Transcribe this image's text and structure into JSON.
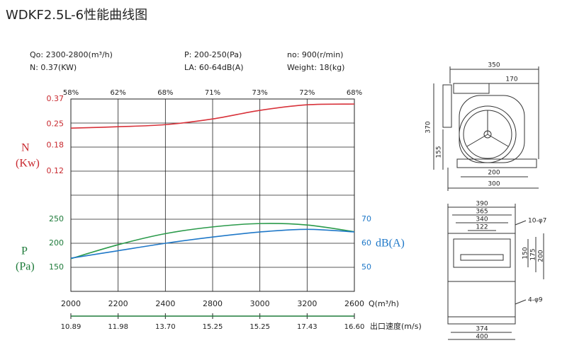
{
  "chart_data": {
    "type": "line",
    "title": "WDKF2.5L-6性能曲线图",
    "specs": [
      [
        "Qo: 2300-2800(m³/h)",
        "P: 200-250(Pa)",
        "no: 900(r/min)"
      ],
      [
        "N: 0.37(KW)",
        "LA: 60-64dB(A)",
        "Weight: 18(kg)"
      ]
    ],
    "categories": [
      "2000",
      "2200",
      "2400",
      "2800",
      "3000",
      "3200",
      "2600"
    ],
    "x_label": "Q(m³/h)",
    "efficiency_labels": [
      "58%",
      "62%",
      "68%",
      "71%",
      "73%",
      "72%",
      "68%"
    ],
    "velocity_labels": [
      "10.89",
      "11.98",
      "13.70",
      "15.25",
      "15.25",
      "17.43",
      "16.60"
    ],
    "velocity_label": "出口速度(m/s)",
    "grid": true,
    "axes": {
      "n": {
        "label": [
          "N",
          "(Kw)"
        ],
        "color": "#c8282e",
        "log": true,
        "ylim": [
          0.0184,
          0.37
        ],
        "yticks": [
          0.37,
          0.25,
          0.18,
          0.12
        ],
        "side": "left"
      },
      "p": {
        "label": [
          "P",
          "(Pa)"
        ],
        "color": "#1e7b3a",
        "log": false,
        "ylim": [
          100,
          500
        ],
        "yticks": [
          250,
          200,
          150
        ],
        "side": "left"
      },
      "db": {
        "label": [
          "dB(A)"
        ],
        "color": "#1f78c8",
        "log": false,
        "ylim": [
          40,
          120
        ],
        "yticks": [
          70,
          60,
          50
        ],
        "side": "right"
      }
    },
    "series": [
      {
        "axis": "n",
        "color": "#d8323a",
        "values": [
          0.235,
          0.24,
          0.248,
          0.271,
          0.31,
          0.338,
          0.342
        ]
      },
      {
        "axis": "p",
        "color": "#2a9a4a",
        "values": [
          168,
          197,
          220,
          234,
          241,
          238,
          224
        ]
      },
      {
        "axis": "db",
        "color": "#1f78c8",
        "values": [
          53.8,
          56.9,
          60,
          62.6,
          64.7,
          65.8,
          64.7
        ]
      }
    ]
  },
  "drawings": {
    "side_view": [
      "350",
      "170",
      "370",
      "155",
      "200",
      "300"
    ],
    "front_view": [
      "390",
      "365",
      "340",
      "122",
      "10-φ7",
      "150",
      "175",
      "200",
      "4-φ9",
      "374",
      "400"
    ]
  }
}
